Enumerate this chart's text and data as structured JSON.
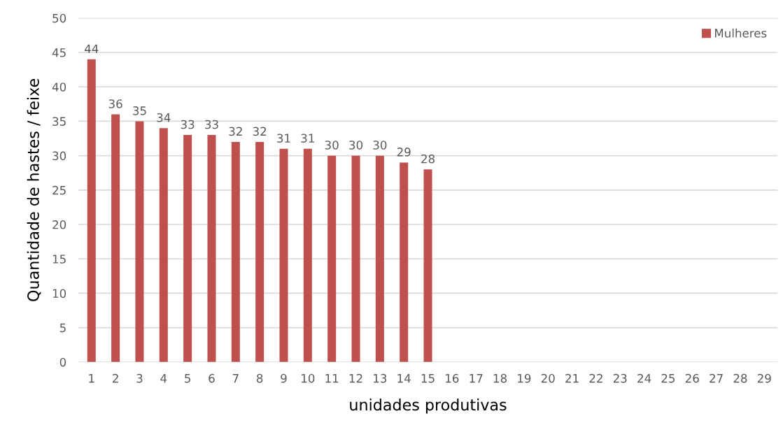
{
  "chart_data": {
    "type": "bar",
    "xlabel": "unidades produtivas",
    "ylabel": "Quantidade de hastes / feixe",
    "categories": [
      "1",
      "2",
      "3",
      "4",
      "5",
      "6",
      "7",
      "8",
      "9",
      "10",
      "11",
      "12",
      "13",
      "14",
      "15",
      "16",
      "17",
      "18",
      "19",
      "20",
      "21",
      "22",
      "23",
      "24",
      "25",
      "26",
      "27",
      "28",
      "29"
    ],
    "series": [
      {
        "name": "Mulheres",
        "color": "#c0504d",
        "values": [
          44,
          36,
          35,
          34,
          33,
          33,
          32,
          32,
          31,
          31,
          30,
          30,
          30,
          29,
          28,
          null,
          null,
          null,
          null,
          null,
          null,
          null,
          null,
          null,
          null,
          null,
          null,
          null,
          null
        ]
      }
    ],
    "ylim": [
      0,
      50
    ],
    "yticks": [
      0,
      5,
      10,
      15,
      20,
      25,
      30,
      35,
      40,
      45,
      50
    ],
    "grid": "y",
    "legend": "top right",
    "data_labels": true
  }
}
